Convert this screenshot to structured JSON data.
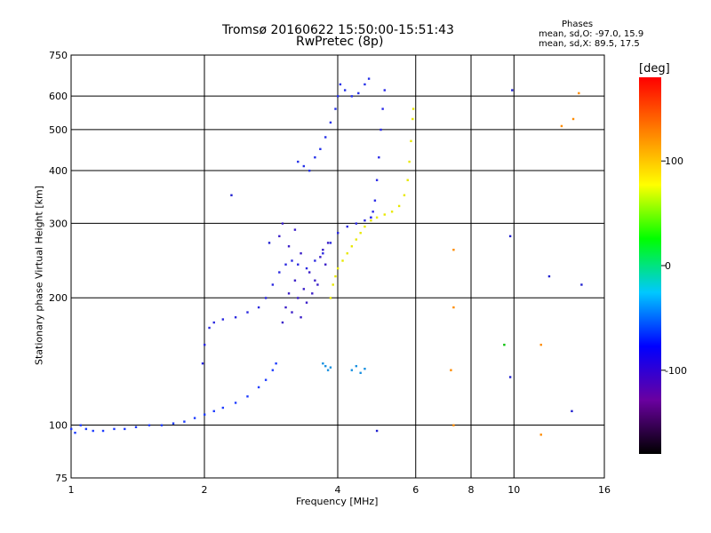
{
  "chart_data": {
    "type": "scatter",
    "title": "Tromsø 20160622 15:50:00-15:51:43",
    "subtitle": "RwPretec (8p)",
    "xlabel": "Frequency [MHz]",
    "ylabel": "Stationary phase Virtual Height [km]",
    "x_scale": "log",
    "y_scale": "log",
    "xlim": [
      1,
      16
    ],
    "ylim": [
      75,
      750
    ],
    "x_ticks": [
      1,
      2,
      4,
      6,
      8,
      10,
      16
    ],
    "x_tick_labels": [
      "1",
      "2",
      "4",
      "6",
      "8",
      "10",
      "16"
    ],
    "y_ticks": [
      75,
      100,
      200,
      300,
      400,
      500,
      600,
      750
    ],
    "y_tick_labels": [
      "75",
      "100",
      "200",
      "300",
      "400",
      "500",
      "600",
      "750"
    ],
    "grid": true,
    "phase_stats": {
      "title": "Phases",
      "mean_sd_o": "mean, sd,O: -97.0, 15.9",
      "mean_sd_x": "mean, sd,X:  89.5, 17.5"
    },
    "colorbar": {
      "unit": "[deg]",
      "range": [
        -180,
        180
      ],
      "ticks": [
        100,
        0,
        -100
      ],
      "tick_labels": [
        "100",
        "0",
        "-100"
      ],
      "colors": [
        "#000000",
        "#6a00a0",
        "#0000ff",
        "#00c8ff",
        "#00ff00",
        "#ffff00",
        "#ff8000",
        "#ff0000"
      ]
    },
    "series": [
      {
        "trace": "o-trace low",
        "color": "#1e3cff",
        "points": [
          [
            1.0,
            98
          ],
          [
            1.02,
            96
          ],
          [
            1.05,
            100
          ],
          [
            1.08,
            98
          ],
          [
            1.12,
            97
          ],
          [
            1.18,
            97
          ],
          [
            1.25,
            98
          ],
          [
            1.32,
            98
          ],
          [
            1.4,
            99
          ],
          [
            1.5,
            100
          ],
          [
            1.6,
            100
          ],
          [
            1.7,
            101
          ],
          [
            1.8,
            102
          ],
          [
            1.9,
            104
          ],
          [
            2.0,
            106
          ],
          [
            2.1,
            108
          ],
          [
            2.2,
            110
          ],
          [
            2.35,
            113
          ],
          [
            2.5,
            117
          ],
          [
            2.65,
            123
          ],
          [
            2.75,
            128
          ],
          [
            2.85,
            135
          ],
          [
            2.9,
            140
          ]
        ]
      },
      {
        "trace": "o-trace mid",
        "color": "#2a28e0",
        "points": [
          [
            1.98,
            140
          ],
          [
            2.0,
            155
          ],
          [
            2.05,
            170
          ],
          [
            2.1,
            175
          ],
          [
            2.2,
            178
          ],
          [
            2.35,
            180
          ],
          [
            2.5,
            185
          ],
          [
            2.65,
            190
          ],
          [
            2.75,
            200
          ],
          [
            2.85,
            215
          ],
          [
            2.95,
            230
          ],
          [
            3.05,
            240
          ],
          [
            3.15,
            245
          ],
          [
            3.25,
            240
          ],
          [
            3.4,
            235
          ],
          [
            3.55,
            245
          ],
          [
            3.7,
            255
          ],
          [
            3.85,
            270
          ],
          [
            4.0,
            285
          ],
          [
            4.2,
            295
          ],
          [
            4.4,
            300
          ],
          [
            4.6,
            305
          ],
          [
            4.75,
            310
          ]
        ]
      },
      {
        "trace": "o-trace spread",
        "color": "#3a1ec8",
        "points": [
          [
            3.0,
            175
          ],
          [
            3.05,
            190
          ],
          [
            3.1,
            205
          ],
          [
            3.15,
            185
          ],
          [
            3.2,
            220
          ],
          [
            3.25,
            200
          ],
          [
            3.3,
            180
          ],
          [
            3.35,
            210
          ],
          [
            3.4,
            195
          ],
          [
            3.45,
            230
          ],
          [
            3.5,
            205
          ],
          [
            3.55,
            220
          ],
          [
            3.6,
            215
          ],
          [
            3.65,
            250
          ],
          [
            3.7,
            260
          ],
          [
            3.75,
            240
          ],
          [
            3.8,
            270
          ],
          [
            3.3,
            255
          ],
          [
            3.1,
            265
          ],
          [
            2.95,
            280
          ],
          [
            3.0,
            300
          ],
          [
            3.2,
            290
          ]
        ]
      },
      {
        "trace": "o-trace upper",
        "color": "#2430e8",
        "points": [
          [
            3.25,
            420
          ],
          [
            3.35,
            410
          ],
          [
            3.45,
            400
          ],
          [
            3.55,
            430
          ],
          [
            3.65,
            450
          ],
          [
            3.75,
            480
          ],
          [
            3.85,
            520
          ],
          [
            3.95,
            560
          ],
          [
            4.0,
            600
          ],
          [
            4.05,
            640
          ],
          [
            4.15,
            620
          ],
          [
            4.3,
            600
          ],
          [
            4.45,
            610
          ],
          [
            4.6,
            640
          ],
          [
            4.7,
            660
          ]
        ]
      },
      {
        "trace": "o-trace cusp",
        "color": "#2a2ae8",
        "points": [
          [
            4.75,
            310
          ],
          [
            4.8,
            320
          ],
          [
            4.85,
            340
          ],
          [
            4.9,
            380
          ],
          [
            4.95,
            430
          ],
          [
            5.0,
            500
          ],
          [
            5.05,
            560
          ],
          [
            5.1,
            620
          ]
        ]
      },
      {
        "trace": "x-trace",
        "color": "#e8e800",
        "points": [
          [
            3.85,
            200
          ],
          [
            3.9,
            215
          ],
          [
            3.95,
            225
          ],
          [
            4.0,
            235
          ],
          [
            4.1,
            245
          ],
          [
            4.2,
            255
          ],
          [
            4.3,
            265
          ],
          [
            4.4,
            275
          ],
          [
            4.5,
            285
          ],
          [
            4.6,
            295
          ],
          [
            4.75,
            305
          ],
          [
            4.9,
            310
          ],
          [
            5.1,
            315
          ],
          [
            5.3,
            320
          ],
          [
            5.5,
            330
          ],
          [
            5.65,
            350
          ],
          [
            5.75,
            380
          ],
          [
            5.8,
            420
          ],
          [
            5.85,
            470
          ],
          [
            5.9,
            530
          ],
          [
            5.92,
            560
          ]
        ]
      },
      {
        "trace": "echo cluster",
        "color": "#1890e0",
        "points": [
          [
            3.7,
            140
          ],
          [
            3.75,
            138
          ],
          [
            3.8,
            135
          ],
          [
            3.85,
            137
          ],
          [
            4.3,
            135
          ],
          [
            4.4,
            138
          ],
          [
            4.5,
            133
          ],
          [
            4.6,
            136
          ]
        ]
      },
      {
        "trace": "scatter blue",
        "color": "#2020d0",
        "points": [
          [
            2.3,
            350
          ],
          [
            2.8,
            270
          ],
          [
            9.9,
            620
          ],
          [
            9.8,
            280
          ],
          [
            9.8,
            130
          ],
          [
            13.5,
            108
          ],
          [
            14.2,
            215
          ],
          [
            12.0,
            225
          ],
          [
            4.9,
            97
          ]
        ]
      },
      {
        "trace": "scatter warm",
        "color": "#ff8c00",
        "points": [
          [
            7.3,
            260
          ],
          [
            7.3,
            190
          ],
          [
            7.2,
            135
          ],
          [
            7.3,
            100
          ],
          [
            11.5,
            155
          ],
          [
            12.8,
            510
          ],
          [
            13.6,
            530
          ],
          [
            14.0,
            610
          ],
          [
            11.5,
            95
          ]
        ]
      },
      {
        "trace": "scatter green",
        "color": "#00c000",
        "points": [
          [
            9.5,
            155
          ]
        ]
      }
    ]
  }
}
